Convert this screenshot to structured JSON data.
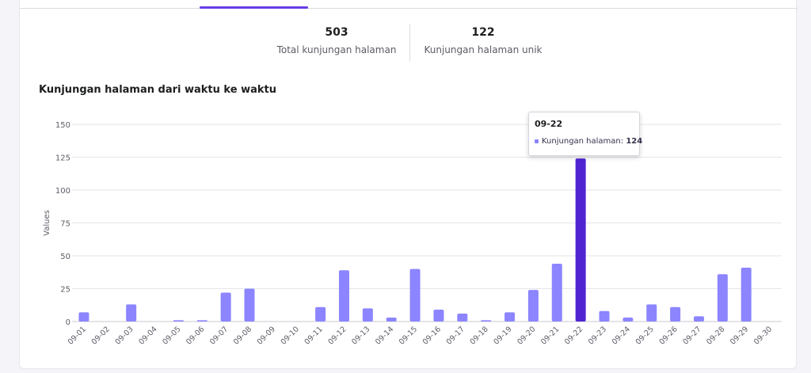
{
  "summary": {
    "total_value": "503",
    "total_label": "Total kunjungan halaman",
    "unique_value": "122",
    "unique_label": "Kunjungan halaman unik"
  },
  "section_title": "Kunjungan halaman dari waktu ke waktu",
  "tooltip": {
    "title": "09-22",
    "series_label": "Kunjungan halaman:",
    "value": "124"
  },
  "colors": {
    "bar": "#8c85ff",
    "bar_active": "#5025d1",
    "accent": "#673de6",
    "grid": "#e6e6ea"
  },
  "chart_data": {
    "type": "bar",
    "title": "Kunjungan halaman dari waktu ke waktu",
    "xlabel": "",
    "ylabel": "Values",
    "ylim": [
      0,
      150
    ],
    "yticks": [
      0,
      25,
      50,
      75,
      100,
      125,
      150
    ],
    "grid": true,
    "categories": [
      "09-01",
      "09-02",
      "09-03",
      "09-04",
      "09-05",
      "09-06",
      "09-07",
      "09-08",
      "09-09",
      "09-10",
      "09-11",
      "09-12",
      "09-13",
      "09-14",
      "09-15",
      "09-16",
      "09-17",
      "09-18",
      "09-19",
      "09-20",
      "09-21",
      "09-22",
      "09-23",
      "09-24",
      "09-25",
      "09-26",
      "09-27",
      "09-28",
      "09-29",
      "09-30"
    ],
    "series": [
      {
        "name": "Kunjungan halaman",
        "values": [
          7,
          0,
          13,
          0,
          1,
          1,
          22,
          25,
          0,
          0,
          11,
          39,
          10,
          3,
          40,
          9,
          6,
          1,
          7,
          24,
          44,
          124,
          8,
          3,
          13,
          11,
          4,
          36,
          41,
          0
        ]
      }
    ],
    "highlight_index": 21
  }
}
